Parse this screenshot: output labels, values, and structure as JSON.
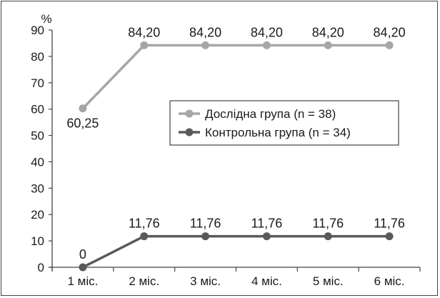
{
  "chart_data": {
    "type": "line",
    "title": "",
    "xlabel": "",
    "ylabel": "%",
    "categories": [
      "1 міс.",
      "2 міс.",
      "3 міс.",
      "4 міс.",
      "5 міс.",
      "6 міс."
    ],
    "ylim": [
      0,
      90
    ],
    "yticks": [
      0,
      10,
      20,
      30,
      40,
      50,
      60,
      70,
      80,
      90
    ],
    "grid": false,
    "legend_position": "center-right",
    "series": [
      {
        "name": "Дослідна група (n = 38)",
        "color": "#a6a6a6",
        "values": [
          60.25,
          84.2,
          84.2,
          84.2,
          84.2,
          84.2
        ],
        "labels": [
          "60,25",
          "84,20",
          "84,20",
          "84,20",
          "84,20",
          "84,20"
        ],
        "label_position": "above"
      },
      {
        "name": "Контрольна група (n = 34)",
        "color": "#595959",
        "values": [
          0,
          11.76,
          11.76,
          11.76,
          11.76,
          11.76
        ],
        "labels": [
          "0",
          "11,76",
          "11,76",
          "11,76",
          "11,76",
          "11,76"
        ],
        "label_position": "above"
      }
    ]
  }
}
